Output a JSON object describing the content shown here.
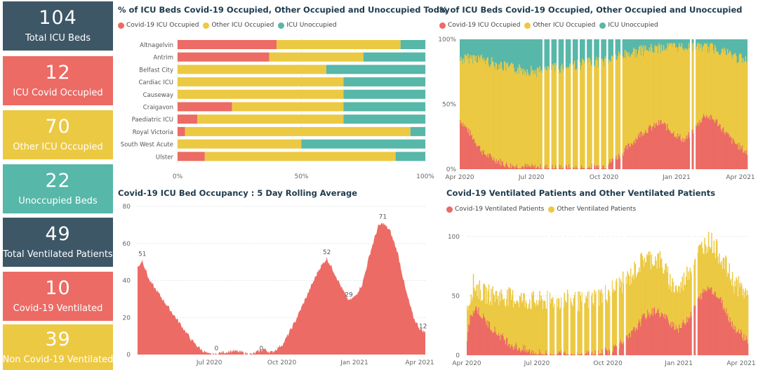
{
  "colors": {
    "covid": "#ec6b64",
    "other": "#ecc942",
    "unocc": "#57b7a9",
    "dark": "#3d5767"
  },
  "kpis": [
    {
      "value": "104",
      "label": "Total ICU Beds",
      "color": "#3d5767"
    },
    {
      "value": "12",
      "label": "ICU Covid Occupied",
      "color": "#ec6b64"
    },
    {
      "value": "70",
      "label": "Other ICU Occupied",
      "color": "#ecc942"
    },
    {
      "value": "22",
      "label": "Unoccupied Beds",
      "color": "#57b7a9"
    },
    {
      "value": "49",
      "label": "Total Ventilated Patients",
      "color": "#3d5767"
    },
    {
      "value": "10",
      "label": "Covid-19 Ventilated",
      "color": "#ec6b64"
    },
    {
      "value": "39",
      "label": "Non Covid-19 Ventilated",
      "color": "#ecc942"
    }
  ],
  "chart_data": [
    {
      "type": "bar",
      "orientation": "horizontal",
      "stacked": "100%",
      "title": "% of ICU Beds Covid-19 Occupied, Other Occupied and Unoccupied Today",
      "legend": [
        "Covid-19 ICU Occupied",
        "Other ICU Occupied",
        "ICU Unoccupied"
      ],
      "legend_position": "top-left",
      "categories": [
        "Altnagelvin",
        "Antrim",
        "Belfast City",
        "Cardiac ICU",
        "Causeway",
        "Craigavon",
        "Paediatric ICU",
        "Royal Victoria",
        "South West Acute",
        "Ulster"
      ],
      "series": [
        {
          "name": "Covid-19 ICU Occupied",
          "values": [
            40,
            37,
            0,
            0,
            0,
            22,
            8,
            3,
            0,
            11
          ]
        },
        {
          "name": "Other ICU Occupied",
          "values": [
            50,
            38,
            60,
            67,
            67,
            45,
            59,
            91,
            50,
            77
          ]
        },
        {
          "name": "ICU Unoccupied",
          "values": [
            10,
            25,
            40,
            33,
            33,
            33,
            33,
            6,
            50,
            12
          ]
        }
      ],
      "x_ticks": [
        "0%",
        "50%",
        "100%"
      ]
    },
    {
      "type": "area",
      "stacked": "100%",
      "title": "% of ICU Beds Covid-19 Occupied, Other Occupied and Unoccupied",
      "legend": [
        "Covid-19 ICU Occupied",
        "Other ICU Occupied",
        "ICU Unoccupied"
      ],
      "legend_position": "top-left",
      "x_ticks": [
        "Apr 2020",
        "Jul 2020",
        "Oct 2020",
        "Jan 2021",
        "Apr 2021"
      ],
      "y_ticks": [
        "0%",
        "50%",
        "100%"
      ],
      "covid_pct_keypoints": [
        [
          0,
          38
        ],
        [
          10,
          30
        ],
        [
          30,
          12
        ],
        [
          60,
          3
        ],
        [
          100,
          1
        ],
        [
          160,
          1
        ],
        [
          185,
          3
        ],
        [
          205,
          12
        ],
        [
          230,
          28
        ],
        [
          255,
          36
        ],
        [
          275,
          26
        ],
        [
          285,
          22
        ],
        [
          300,
          33
        ],
        [
          310,
          42
        ],
        [
          325,
          37
        ],
        [
          345,
          22
        ],
        [
          365,
          12
        ]
      ],
      "unocc_pct_keypoints": [
        [
          0,
          16
        ],
        [
          20,
          14
        ],
        [
          60,
          22
        ],
        [
          100,
          25
        ],
        [
          140,
          20
        ],
        [
          180,
          17
        ],
        [
          220,
          10
        ],
        [
          260,
          6
        ],
        [
          300,
          5
        ],
        [
          330,
          8
        ],
        [
          365,
          18
        ]
      ]
    },
    {
      "type": "area",
      "title": "Covid-19 ICU Bed Occupancy : 5 Day Rolling Average",
      "ylim": [
        0,
        80
      ],
      "y_ticks": [
        0,
        20,
        40,
        60,
        80
      ],
      "x_ticks": [
        "Jul 2020",
        "Oct 2020",
        "Jan 2021",
        "Apr 2021"
      ],
      "data_labels": [
        "51",
        "0",
        "0",
        "52",
        "29",
        "71",
        "12"
      ],
      "keypoints": [
        [
          0,
          47
        ],
        [
          6,
          51
        ],
        [
          15,
          40
        ],
        [
          25,
          34
        ],
        [
          40,
          25
        ],
        [
          55,
          16
        ],
        [
          70,
          7
        ],
        [
          80,
          3
        ],
        [
          90,
          0
        ],
        [
          100,
          0
        ],
        [
          105,
          1
        ],
        [
          120,
          2
        ],
        [
          135,
          1
        ],
        [
          145,
          0
        ],
        [
          150,
          1
        ],
        [
          160,
          3
        ],
        [
          170,
          1
        ],
        [
          185,
          6
        ],
        [
          200,
          18
        ],
        [
          215,
          32
        ],
        [
          230,
          46
        ],
        [
          240,
          52
        ],
        [
          250,
          44
        ],
        [
          260,
          35
        ],
        [
          268,
          29
        ],
        [
          275,
          31
        ],
        [
          285,
          38
        ],
        [
          295,
          55
        ],
        [
          305,
          69
        ],
        [
          311,
          71
        ],
        [
          320,
          67
        ],
        [
          330,
          55
        ],
        [
          340,
          35
        ],
        [
          350,
          20
        ],
        [
          358,
          14
        ],
        [
          365,
          12
        ]
      ]
    },
    {
      "type": "area",
      "title": "Covid-19 Ventilated Patients and Other Ventilated Patients",
      "legend": [
        "Covid-19 Ventilated Patients",
        "Other Ventilated Patients"
      ],
      "legend_position": "top-left",
      "ylim": [
        0,
        110
      ],
      "y_ticks": [
        0,
        50,
        100
      ],
      "x_ticks": [
        "Apr 2020",
        "Jul 2020",
        "Oct 2020",
        "Jan 2021",
        "Apr 2021"
      ],
      "covid_keypoints": [
        [
          0,
          15
        ],
        [
          5,
          35
        ],
        [
          12,
          40
        ],
        [
          25,
          28
        ],
        [
          40,
          18
        ],
        [
          60,
          8
        ],
        [
          80,
          3
        ],
        [
          100,
          1
        ],
        [
          160,
          1
        ],
        [
          185,
          4
        ],
        [
          210,
          15
        ],
        [
          230,
          33
        ],
        [
          245,
          38
        ],
        [
          260,
          30
        ],
        [
          275,
          22
        ],
        [
          290,
          35
        ],
        [
          305,
          52
        ],
        [
          315,
          58
        ],
        [
          330,
          45
        ],
        [
          345,
          25
        ],
        [
          365,
          12
        ]
      ],
      "total_keypoints": [
        [
          0,
          40
        ],
        [
          8,
          60
        ],
        [
          20,
          52
        ],
        [
          40,
          50
        ],
        [
          60,
          48
        ],
        [
          90,
          45
        ],
        [
          120,
          47
        ],
        [
          150,
          45
        ],
        [
          180,
          52
        ],
        [
          210,
          65
        ],
        [
          230,
          82
        ],
        [
          250,
          80
        ],
        [
          265,
          60
        ],
        [
          275,
          55
        ],
        [
          290,
          75
        ],
        [
          305,
          92
        ],
        [
          315,
          97
        ],
        [
          330,
          82
        ],
        [
          345,
          62
        ],
        [
          365,
          50
        ]
      ]
    }
  ]
}
